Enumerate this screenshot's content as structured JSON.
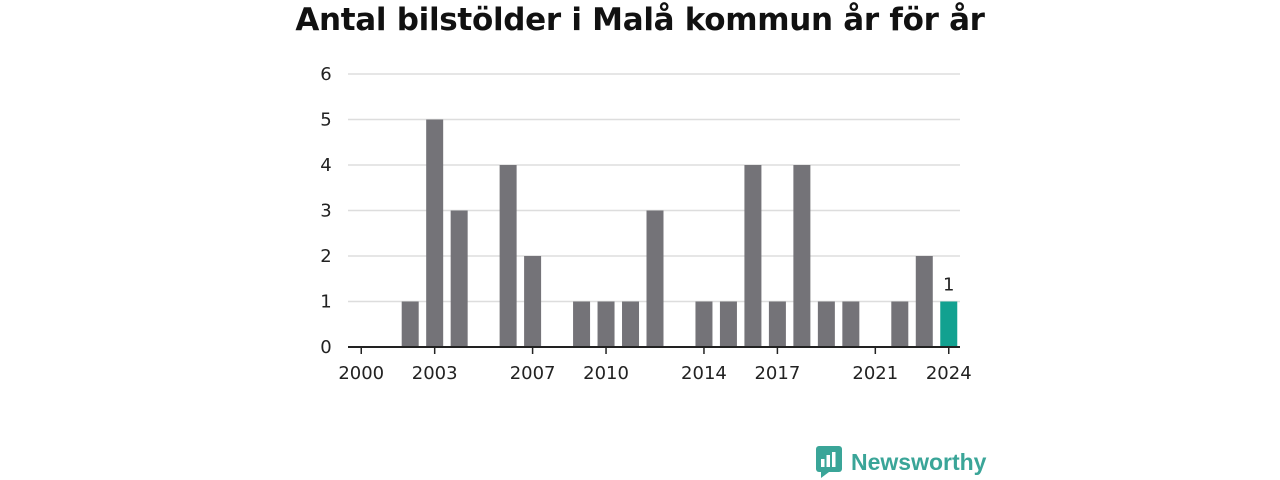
{
  "chart_data": {
    "type": "bar",
    "title": "Antal bilstölder i Malå kommun år för år",
    "categories": [
      "2000",
      "2001",
      "2002",
      "2003",
      "2004",
      "2005",
      "2006",
      "2007",
      "2008",
      "2009",
      "2010",
      "2011",
      "2012",
      "2013",
      "2014",
      "2015",
      "2016",
      "2017",
      "2018",
      "2019",
      "2020",
      "2021",
      "2022",
      "2023",
      "2024"
    ],
    "values": [
      0,
      0,
      1,
      5,
      3,
      0,
      4,
      2,
      0,
      1,
      1,
      1,
      3,
      0,
      1,
      1,
      4,
      1,
      4,
      1,
      1,
      0,
      1,
      2,
      1
    ],
    "x_tick_labels": [
      "2000",
      "2003",
      "2007",
      "2010",
      "2014",
      "2017",
      "2021",
      "2024"
    ],
    "y_ticks": [
      "0",
      "1",
      "2",
      "3",
      "4",
      "5",
      "6"
    ],
    "ylim": [
      0,
      6
    ],
    "grid": true,
    "highlight": {
      "category": "2024",
      "label": "1"
    },
    "colors": {
      "bar": "#747378",
      "highlight": "#12a190",
      "grid": "#dddddd",
      "axis": "#222222"
    }
  },
  "branding": {
    "name": "Newsworthy",
    "logo_icon": "newsworthy-chart-icon",
    "color": "#3aa598"
  }
}
